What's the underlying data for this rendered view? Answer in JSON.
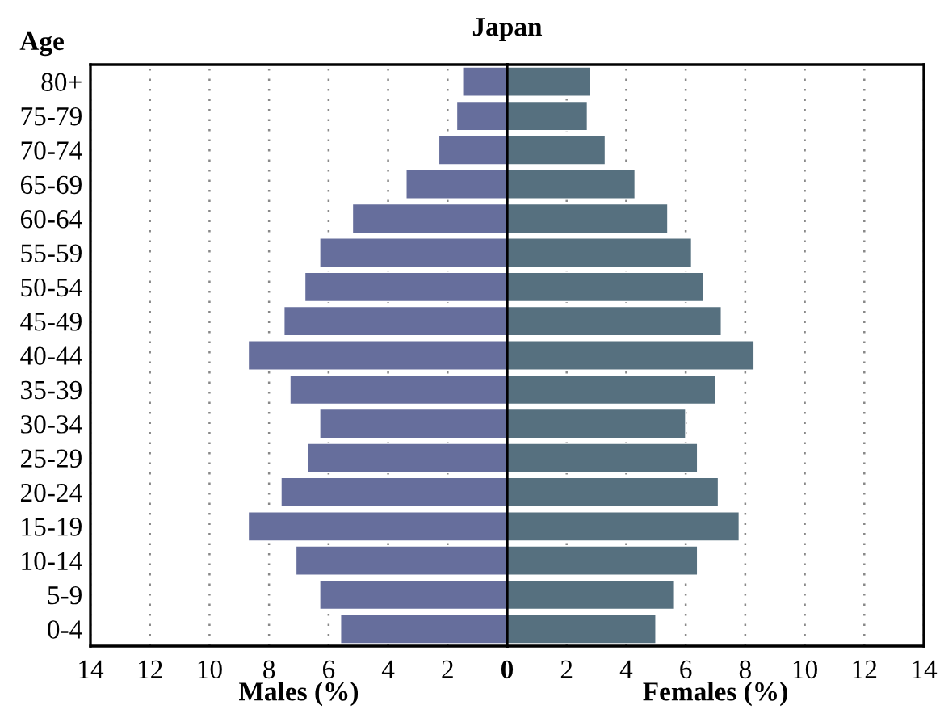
{
  "chart_data": [
    {
      "type": "bar",
      "orientation": "horizontal",
      "title": "Japan",
      "ylabel": "Age",
      "xlabel": "Males (%)",
      "categories": [
        "80+",
        "75-79",
        "70-74",
        "65-69",
        "60-64",
        "55-59",
        "50-54",
        "45-49",
        "40-44",
        "35-39",
        "30-34",
        "25-29",
        "20-24",
        "15-19",
        "10-14",
        "5-9",
        "0-4"
      ],
      "values": [
        1.5,
        1.7,
        2.3,
        3.4,
        5.2,
        6.3,
        6.8,
        7.5,
        8.7,
        7.3,
        6.3,
        6.7,
        7.6,
        8.7,
        7.1,
        6.3,
        5.6
      ],
      "color": "#666e9c",
      "xlim": [
        14,
        0
      ],
      "xticks": [
        14,
        12,
        10,
        8,
        6,
        4,
        2,
        0
      ],
      "grid": "x"
    },
    {
      "type": "bar",
      "orientation": "horizontal",
      "xlabel": "Females (%)",
      "categories": [
        null,
        null,
        null,
        null,
        null,
        null,
        null,
        null,
        null,
        null,
        null,
        null,
        null,
        null,
        null,
        null,
        null
      ],
      "values": [
        2.8,
        2.7,
        3.3,
        4.3,
        5.4,
        6.2,
        6.6,
        7.2,
        8.3,
        7.0,
        6.0,
        6.4,
        7.1,
        7.8,
        6.4,
        5.6,
        5.0
      ],
      "color": "#56707f",
      "xlim": [
        0,
        14
      ],
      "xticks": [
        {
          "value": 0,
          "label": null
        },
        2,
        4,
        6,
        8,
        10,
        12,
        14
      ],
      "grid": "x",
      "tick_labels": "x"
    }
  ]
}
